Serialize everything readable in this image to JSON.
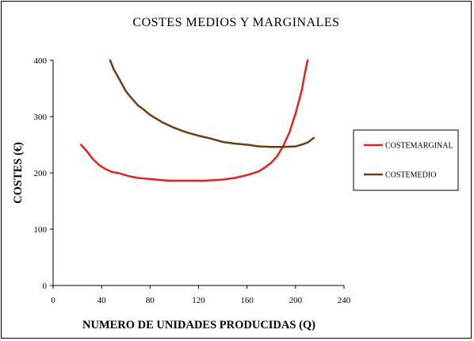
{
  "chart_data": {
    "type": "line",
    "title": "COSTES MEDIOS Y MARGINALES",
    "xlabel": "NUMERO DE UNIDADES PRODUCIDAS (Q)",
    "ylabel": "COSTES (€)",
    "xlim": [
      0,
      240
    ],
    "ylim": [
      0,
      400
    ],
    "xticks": [
      0,
      40,
      80,
      120,
      160,
      200,
      240
    ],
    "yticks": [
      0,
      100,
      200,
      300,
      400
    ],
    "grid": false,
    "legend_position": "right",
    "series": [
      {
        "name": "COSTEMARGINAL",
        "color": "#e8201c",
        "x": [
          23,
          28,
          33,
          38,
          43,
          48,
          55,
          63,
          70,
          80,
          95,
          110,
          125,
          140,
          150,
          160,
          170,
          175,
          180,
          185,
          190,
          195,
          200,
          205,
          208,
          210
        ],
        "y": [
          250,
          238,
          224,
          214,
          207,
          202,
          199,
          194,
          191,
          189,
          186,
          186,
          186,
          188,
          191,
          196,
          203,
          210,
          218,
          230,
          248,
          272,
          305,
          345,
          380,
          400
        ]
      },
      {
        "name": "COSTEMEDIO",
        "color": "#6b3f12",
        "x": [
          47,
          50,
          55,
          60,
          65,
          70,
          75,
          80,
          90,
          100,
          110,
          120,
          130,
          140,
          150,
          160,
          170,
          180,
          190,
          200,
          205,
          210,
          215
        ],
        "y": [
          400,
          384,
          365,
          345,
          332,
          320,
          312,
          303,
          290,
          280,
          272,
          266,
          261,
          255,
          252,
          250,
          247,
          246,
          246,
          247,
          250,
          254,
          262
        ]
      }
    ]
  }
}
